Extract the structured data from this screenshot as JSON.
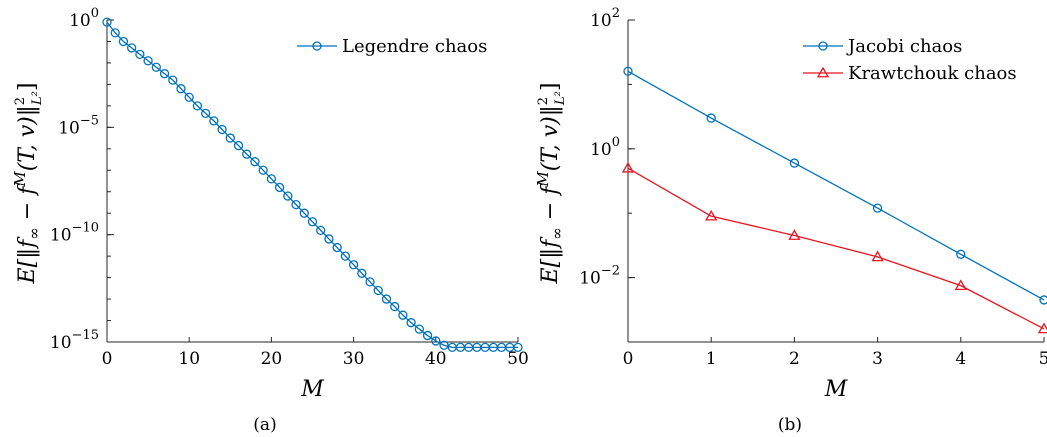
{
  "chart_data": [
    {
      "type": "line",
      "panel_label": "(a)",
      "xlabel": "M",
      "ylabel": "E[‖f∞ − f^M(T, v)‖²_{L²}]",
      "yscale": "log",
      "xlim": [
        0,
        50
      ],
      "ylim": [
        1e-15,
        1
      ],
      "x_ticks": [
        "0",
        "10",
        "20",
        "30",
        "40",
        "50"
      ],
      "y_ticks": [
        {
          "base": "10",
          "exp": "0"
        },
        {
          "base": "10",
          "exp": "−5"
        },
        {
          "base": "10",
          "exp": "−10"
        },
        {
          "base": "10",
          "exp": "−15"
        }
      ],
      "legend_position": "top-right",
      "series": [
        {
          "name": "Legendre chaos",
          "color": "#0072bd",
          "marker": "circle",
          "x": [
            0,
            1,
            2,
            3,
            4,
            5,
            6,
            7,
            8,
            9,
            10,
            11,
            12,
            13,
            14,
            15,
            16,
            17,
            18,
            19,
            20,
            21,
            22,
            23,
            24,
            25,
            26,
            27,
            28,
            29,
            30,
            31,
            32,
            33,
            34,
            35,
            36,
            37,
            38,
            39,
            40,
            41,
            42,
            43,
            44,
            45,
            46,
            47,
            48,
            49,
            50
          ],
          "log10_y": [
            -0.1,
            -0.6,
            -1.0,
            -1.3,
            -1.6,
            -1.9,
            -2.2,
            -2.5,
            -2.8,
            -3.2,
            -3.6,
            -4.0,
            -4.35,
            -4.7,
            -5.1,
            -5.5,
            -5.85,
            -6.25,
            -6.6,
            -7.0,
            -7.4,
            -7.8,
            -8.2,
            -8.6,
            -9.0,
            -9.4,
            -9.8,
            -10.2,
            -10.6,
            -11.0,
            -11.4,
            -11.8,
            -12.2,
            -12.6,
            -13.0,
            -13.35,
            -13.75,
            -14.1,
            -14.4,
            -14.7,
            -14.95,
            -15.15,
            -15.25,
            -15.25,
            -15.25,
            -15.25,
            -15.25,
            -15.25,
            -15.25,
            -15.25,
            -15.25
          ]
        }
      ]
    },
    {
      "type": "line",
      "panel_label": "(b)",
      "xlabel": "M",
      "ylabel": "E[‖f∞ − f^M(T, v)‖²_{L²}]",
      "yscale": "log",
      "xlim": [
        0,
        5
      ],
      "ylim": [
        0.001,
        100
      ],
      "x_ticks": [
        "0",
        "1",
        "2",
        "3",
        "4",
        "5"
      ],
      "y_ticks": [
        {
          "base": "10",
          "exp": "2"
        },
        {
          "base": "10",
          "exp": "0"
        },
        {
          "base": "10",
          "exp": "−2"
        }
      ],
      "legend_position": "top-right",
      "series": [
        {
          "name": "Jacobi chaos",
          "color": "#0072bd",
          "marker": "circle",
          "x": [
            0,
            1,
            2,
            3,
            4,
            5
          ],
          "y": [
            16,
            3.0,
            0.6,
            0.12,
            0.023,
            0.0045
          ]
        },
        {
          "name": "Krawtchouk chaos",
          "color": "#e8141e",
          "marker": "triangle",
          "x": [
            0,
            1,
            2,
            3,
            4,
            5
          ],
          "y": [
            0.5,
            0.09,
            0.045,
            0.021,
            0.0075,
            0.0016
          ]
        }
      ]
    }
  ]
}
